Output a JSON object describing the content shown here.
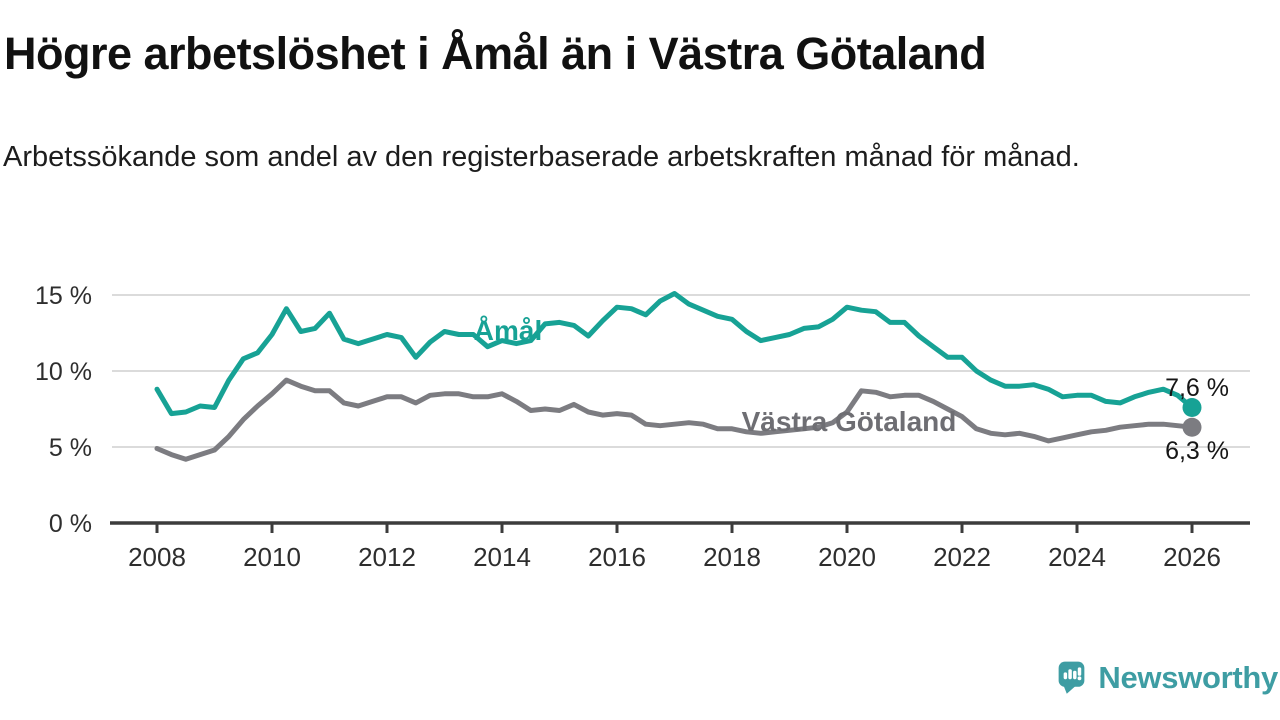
{
  "header": {
    "title": "Högre arbetslöshet i Åmål än i Västra Götaland",
    "subtitle": "Arbetssökande som andel av den registerbaserade arbetskraften månad för månad."
  },
  "chart_data": {
    "type": "line",
    "x_start": 2008,
    "x_step": 0.25,
    "x_end": 2026,
    "ylim": [
      0,
      16.5
    ],
    "grid": true,
    "x_ticks": [
      {
        "v": 2008,
        "label": "2008"
      },
      {
        "v": 2010,
        "label": "2010"
      },
      {
        "v": 2012,
        "label": "2012"
      },
      {
        "v": 2014,
        "label": "2014"
      },
      {
        "v": 2016,
        "label": "2016"
      },
      {
        "v": 2018,
        "label": "2018"
      },
      {
        "v": 2020,
        "label": "2020"
      },
      {
        "v": 2022,
        "label": "2022"
      },
      {
        "v": 2024,
        "label": "2024"
      },
      {
        "v": 2026,
        "label": "2026"
      }
    ],
    "y_ticks": [
      {
        "v": 0,
        "label": "0 %"
      },
      {
        "v": 5,
        "label": "5 %"
      },
      {
        "v": 10,
        "label": "10 %"
      },
      {
        "v": 15,
        "label": "15 %"
      }
    ],
    "series": [
      {
        "name": "Åmål",
        "color": "#17a295",
        "label_color": "#17a295",
        "end_label": "7,6 %",
        "last_value": 7.6,
        "values": [
          8.8,
          7.2,
          7.3,
          7.7,
          7.6,
          9.4,
          10.8,
          11.2,
          12.4,
          14.1,
          12.6,
          12.8,
          13.8,
          12.1,
          11.8,
          12.1,
          12.4,
          12.2,
          10.9,
          11.9,
          12.6,
          12.4,
          12.4,
          11.6,
          12.0,
          11.8,
          12.0,
          13.1,
          13.2,
          13.0,
          12.3,
          13.3,
          14.2,
          14.1,
          13.7,
          14.6,
          15.1,
          14.4,
          14.0,
          13.6,
          13.4,
          12.6,
          12.0,
          12.2,
          12.4,
          12.8,
          12.9,
          13.4,
          14.2,
          14.0,
          13.9,
          13.2,
          13.2,
          12.3,
          11.6,
          10.9,
          10.9,
          10.0,
          9.4,
          9.0,
          9.0,
          9.1,
          8.8,
          8.3,
          8.4,
          8.4,
          8.0,
          7.9,
          8.3,
          8.6,
          8.8,
          8.4,
          7.6
        ]
      },
      {
        "name": "Västra Götaland",
        "color": "#7c7c81",
        "label_color": "#6e6e73",
        "end_label": "6,3 %",
        "last_value": 6.3,
        "values": [
          4.9,
          4.5,
          4.2,
          4.5,
          4.8,
          5.7,
          6.8,
          7.7,
          8.5,
          9.4,
          9.0,
          8.7,
          8.7,
          7.9,
          7.7,
          8.0,
          8.3,
          8.3,
          7.9,
          8.4,
          8.5,
          8.5,
          8.3,
          8.3,
          8.5,
          8.0,
          7.4,
          7.5,
          7.4,
          7.8,
          7.3,
          7.1,
          7.2,
          7.1,
          6.5,
          6.4,
          6.5,
          6.6,
          6.5,
          6.2,
          6.2,
          6.0,
          5.9,
          6.0,
          6.1,
          6.2,
          6.3,
          6.6,
          7.3,
          8.7,
          8.6,
          8.3,
          8.4,
          8.4,
          8.0,
          7.5,
          7.0,
          6.2,
          5.9,
          5.8,
          5.9,
          5.7,
          5.4,
          5.6,
          5.8,
          6.0,
          6.1,
          6.3,
          6.4,
          6.5,
          6.5,
          6.4,
          6.3
        ]
      }
    ],
    "colors": {
      "gridline": "#dbdbdb",
      "axis": "#3c3c3c",
      "tick_text": "#2e2e2e",
      "end_label_text": "#161616"
    }
  },
  "footer": {
    "brand": "Newsworthy",
    "brand_color": "#3e9da3"
  }
}
